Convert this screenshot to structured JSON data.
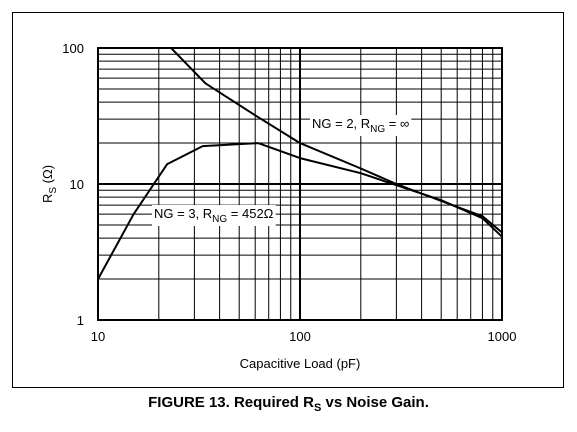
{
  "caption": {
    "prefix": "FIGURE 13. Required R",
    "sub": "S",
    "suffix": " vs Noise Gain."
  },
  "chart_data": {
    "type": "line",
    "scale": {
      "x": "log",
      "y": "log"
    },
    "xlim": [
      10,
      1000
    ],
    "ylim": [
      1,
      100
    ],
    "grid": true,
    "xlabel": "Capacitive Load (pF)",
    "ylabel": {
      "main": "R",
      "sub": "S",
      "rest": " (Ω)"
    },
    "x_ticks": [
      "10",
      "100",
      "1000"
    ],
    "y_ticks": [
      "1",
      "10",
      "100"
    ],
    "series": [
      {
        "label": {
          "a": "NG = 2, R",
          "sub": "NG",
          "b": " = ∞"
        },
        "points": [
          [
            23,
            100
          ],
          [
            34,
            55
          ],
          [
            60,
            32
          ],
          [
            100,
            20
          ],
          [
            200,
            13
          ],
          [
            300,
            10
          ],
          [
            500,
            7.5
          ],
          [
            800,
            5.8
          ],
          [
            1000,
            4.4
          ]
        ]
      },
      {
        "label": {
          "a": "NG = 3, R",
          "sub": "NG",
          "b": " = 452Ω"
        },
        "points": [
          [
            10,
            2
          ],
          [
            15,
            6
          ],
          [
            22,
            14
          ],
          [
            33,
            19
          ],
          [
            62,
            20
          ],
          [
            100,
            15.5
          ],
          [
            200,
            12
          ],
          [
            300,
            9.8
          ],
          [
            500,
            7.6
          ],
          [
            800,
            5.6
          ],
          [
            1000,
            4.1
          ]
        ]
      }
    ]
  }
}
